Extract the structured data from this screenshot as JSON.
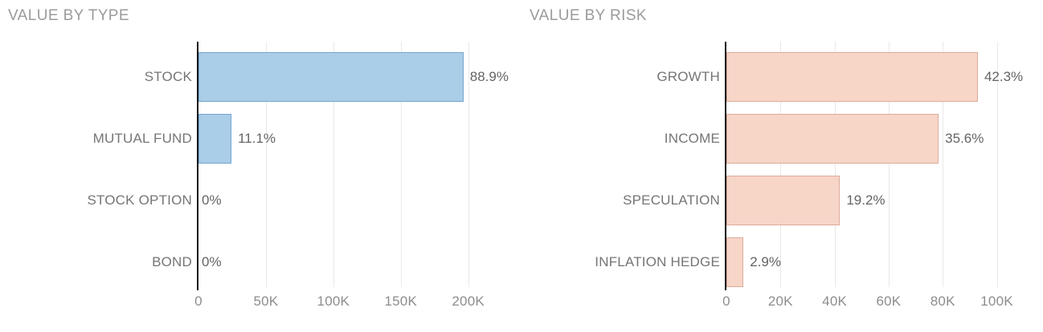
{
  "page_background": "#ffffff",
  "chart_data": [
    {
      "type": "bar",
      "orientation": "horizontal",
      "title": "VALUE BY TYPE",
      "categories": [
        "STOCK",
        "MUTUAL FUND",
        "STOCK OPTION",
        "BOND"
      ],
      "values_thousands": [
        196.5,
        24.5,
        0,
        0
      ],
      "data_labels": [
        "88.9%",
        "11.1%",
        "0%",
        "0%"
      ],
      "xlim_thousands": [
        0,
        230
      ],
      "x_tick_values_thousands": [
        0,
        50,
        100,
        150,
        200
      ],
      "x_tick_labels": [
        "0",
        "50K",
        "100K",
        "150K",
        "200K"
      ],
      "grid": true,
      "legend": "none",
      "bar_fill": "#aacde8",
      "bar_border": "#74a7cf"
    },
    {
      "type": "bar",
      "orientation": "horizontal",
      "title": "VALUE BY RISK",
      "categories": [
        "GROWTH",
        "INCOME",
        "SPECULATION",
        "INFLATION HEDGE"
      ],
      "values_thousands": [
        93,
        78.5,
        42,
        6.3
      ],
      "data_labels": [
        "42.3%",
        "35.6%",
        "19.2%",
        "2.9%"
      ],
      "xlim_thousands": [
        0,
        115
      ],
      "x_tick_values_thousands": [
        0,
        20,
        40,
        60,
        80,
        100
      ],
      "x_tick_labels": [
        "0",
        "20K",
        "40K",
        "60K",
        "80K",
        "100K"
      ],
      "grid": true,
      "legend": "none",
      "bar_fill": "#f7d5c7",
      "bar_border": "#dcab9a"
    }
  ],
  "colors": {
    "title_text": "#9b9b9b",
    "category_text": "#757575",
    "value_text": "#646464",
    "tick_text": "#8d8d8d",
    "gridline": "#e9e9e9",
    "axis_line": "#111111"
  }
}
